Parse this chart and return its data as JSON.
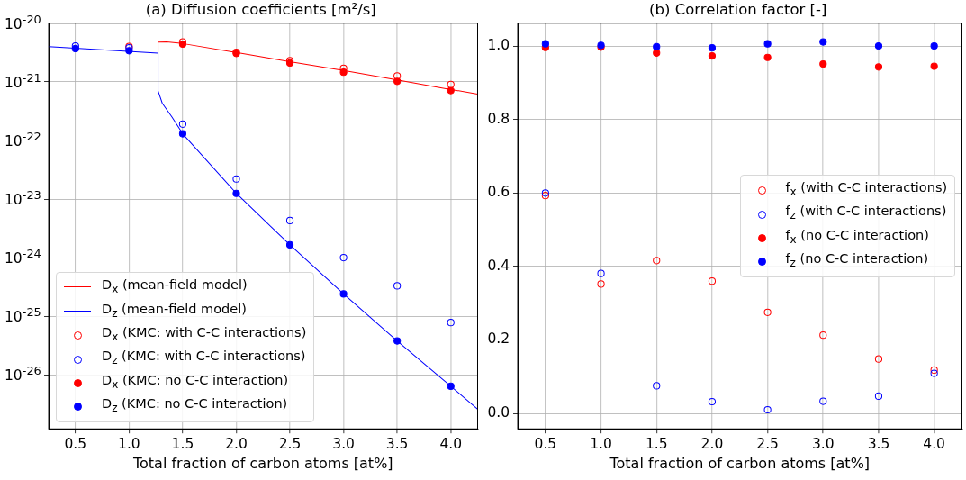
{
  "chart_data": [
    {
      "type": "scatter",
      "title": "(a) Diffusion coefficients [m²/s]",
      "xlabel": "Total fraction of carbon atoms [at%]",
      "log": "y",
      "grid": true,
      "legend": "bottom left",
      "xlim": [
        0.25,
        4.25
      ],
      "xticks": [
        {
          "value": 0.5,
          "label": "0.5"
        },
        {
          "value": 1.0,
          "label": "1.0"
        },
        {
          "value": 1.5,
          "label": "1.5"
        },
        {
          "value": 2.0,
          "label": "2.0"
        },
        {
          "value": 2.5,
          "label": "2.5"
        },
        {
          "value": 3.0,
          "label": "3.0"
        },
        {
          "value": 3.5,
          "label": "3.5"
        },
        {
          "value": 4.0,
          "label": "4.0"
        }
      ],
      "ylim": [
        1.2e-27,
        1e-20
      ],
      "yticks": [
        {
          "value": 1e-26,
          "label": "10$^{-26}$"
        },
        {
          "value": 1e-25,
          "label": "10$^{-25}$"
        },
        {
          "value": 1e-24,
          "label": "10$^{-24}$"
        },
        {
          "value": 1e-23,
          "label": "10$^{-23}$"
        },
        {
          "value": 1e-22,
          "label": "10$^{-22}$"
        },
        {
          "value": 1e-21,
          "label": "10$^{-21}$"
        },
        {
          "value": 1e-20,
          "label": "10$^{-20}$"
        }
      ],
      "series": [
        {
          "name": "D$_{x}$ (mean-field model)",
          "type": "line",
          "marker": "none",
          "color": "#ff0000",
          "x": [
            1.27,
            1.27,
            1.35,
            1.5,
            2.0,
            2.5,
            3.0,
            3.5,
            4.0,
            4.25
          ],
          "values": [
            3.1e-21,
            4.75e-21,
            4.8e-21,
            4.5e-21,
            3.16e-21,
            2.2e-21,
            1.56e-21,
            1.08e-21,
            7.4e-22,
            6.2e-22
          ]
        },
        {
          "name": "D$_{z}$ (mean-field model)",
          "type": "line",
          "marker": "none",
          "color": "#0000ff",
          "x": [
            0.25,
            1.27,
            1.27,
            1.31,
            1.4,
            1.5,
            2.0,
            2.5,
            3.0,
            3.5,
            4.0,
            4.25
          ],
          "values": [
            4e-21,
            3.1e-21,
            7e-22,
            4.3e-22,
            2.5e-22,
            1.3e-22,
            1.25e-23,
            1.65e-24,
            2.4e-25,
            3.8e-26,
            6.4e-27,
            2.6e-27
          ]
        },
        {
          "name": "D$_{x}$ (KMC: with C-C interactions)",
          "marker": "circle-open",
          "color": "#ff0000",
          "x": [
            1.0,
            1.5,
            2.0,
            2.5,
            3.0,
            3.5,
            4.0
          ],
          "values": [
            4e-21,
            4.8e-21,
            3.2e-21,
            2.3e-21,
            1.7e-21,
            1.26e-21,
            9e-22
          ]
        },
        {
          "name": "D$_{z}$ (KMC: with C-C interactions)",
          "marker": "circle-open",
          "color": "#0000ff",
          "x": [
            0.5,
            1.0,
            1.5,
            2.0,
            2.5,
            3.0,
            3.5,
            4.0
          ],
          "values": [
            4.1e-21,
            3.8e-21,
            1.9e-22,
            2.2e-23,
            4.3e-24,
            1e-24,
            3.3e-25,
            7.8e-26
          ]
        },
        {
          "name": "D$_{x}$ (KMC: no C-C interaction)",
          "marker": "circle",
          "color": "#ff0000",
          "x": [
            1.5,
            2.0,
            2.5,
            3.0,
            3.5,
            4.0
          ],
          "values": [
            4.4e-21,
            3.05e-21,
            2.1e-21,
            1.46e-21,
            1.02e-21,
            7.1e-22
          ]
        },
        {
          "name": "D$_{z}$ (KMC: no C-C interaction)",
          "marker": "circle",
          "color": "#0000ff",
          "x": [
            0.5,
            1.0,
            1.5,
            2.0,
            2.5,
            3.0,
            3.5,
            4.0
          ],
          "values": [
            3.7e-21,
            3.4e-21,
            1.3e-22,
            1.25e-23,
            1.65e-24,
            2.4e-25,
            3.8e-26,
            6.4e-27
          ]
        }
      ]
    },
    {
      "type": "scatter",
      "title": "(b) Correlation factor [-]",
      "xlabel": "Total fraction of carbon atoms [at%]",
      "grid": true,
      "legend": "right",
      "xlim": [
        0.25,
        4.25
      ],
      "xticks": [
        {
          "value": 0.5,
          "label": "0.5"
        },
        {
          "value": 1.0,
          "label": "1.0"
        },
        {
          "value": 1.5,
          "label": "1.5"
        },
        {
          "value": 2.0,
          "label": "2.0"
        },
        {
          "value": 2.5,
          "label": "2.5"
        },
        {
          "value": 3.0,
          "label": "3.0"
        },
        {
          "value": 3.5,
          "label": "3.5"
        },
        {
          "value": 4.0,
          "label": "4.0"
        }
      ],
      "ylim": [
        -0.042,
        1.062
      ],
      "yticks": [
        {
          "value": 0,
          "label": "0.0"
        },
        {
          "value": 0.2,
          "label": "0.2"
        },
        {
          "value": 0.4,
          "label": "0.4"
        },
        {
          "value": 0.6,
          "label": "0.6"
        },
        {
          "value": 0.8,
          "label": "0.8"
        },
        {
          "value": 1.0,
          "label": "1.0"
        }
      ],
      "series": [
        {
          "name": "f$_{x}$ (with C-C interactions)",
          "marker": "circle-open",
          "color": "#ff0000",
          "x": [
            0.5,
            1.0,
            1.5,
            2.0,
            2.5,
            3.0,
            3.5,
            4.0
          ],
          "values": [
            0.593,
            0.352,
            0.416,
            0.36,
            0.275,
            0.213,
            0.148,
            0.118
          ]
        },
        {
          "name": "f$_{z}$ (with C-C interactions)",
          "marker": "circle-open",
          "color": "#0000ff",
          "x": [
            0.5,
            1.0,
            1.5,
            2.0,
            2.5,
            3.0,
            3.5,
            4.0
          ],
          "values": [
            0.6,
            0.381,
            0.075,
            0.032,
            0.01,
            0.033,
            0.047,
            0.109
          ]
        },
        {
          "name": "f$_{x}$ (no C-C interaction)",
          "marker": "circle",
          "color": "#ff0000",
          "x": [
            0.5,
            1.0,
            1.5,
            2.0,
            2.5,
            3.0,
            3.5,
            4.0
          ],
          "values": [
            0.996,
            0.997,
            0.981,
            0.973,
            0.969,
            0.951,
            0.943,
            0.945
          ]
        },
        {
          "name": "f$_{z}$ (no C-C interaction)",
          "marker": "circle",
          "color": "#0000ff",
          "x": [
            0.5,
            1.0,
            1.5,
            2.0,
            2.5,
            3.0,
            3.5,
            4.0
          ],
          "values": [
            1.006,
            1.002,
            0.998,
            0.995,
            1.006,
            1.011,
            1.0,
            1.0
          ]
        }
      ]
    }
  ]
}
